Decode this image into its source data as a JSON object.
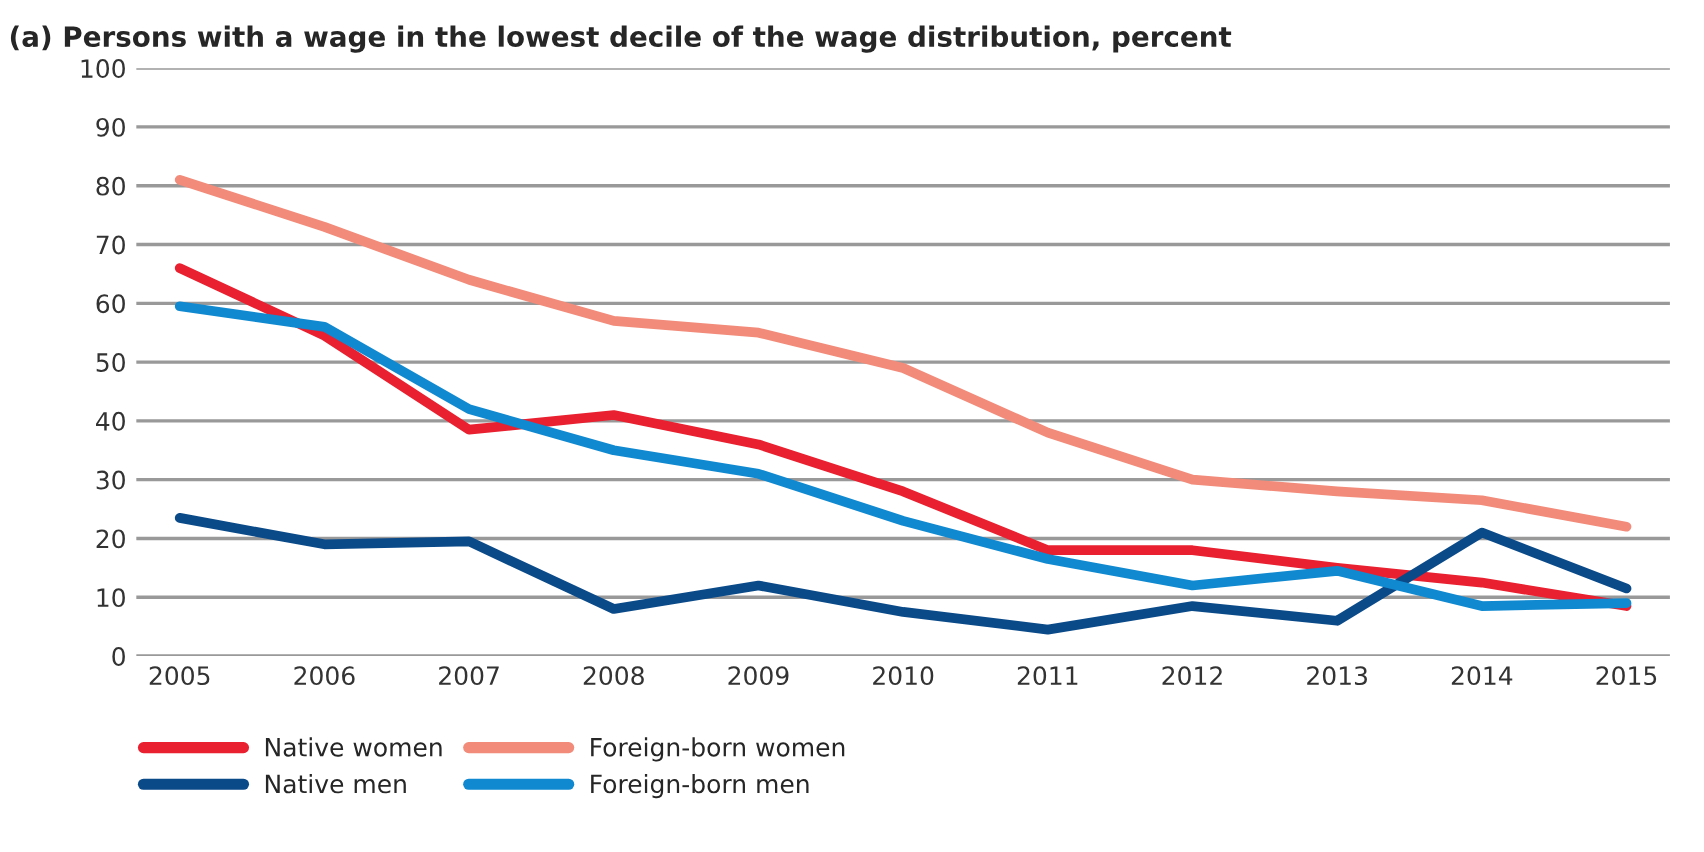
{
  "chart_data": {
    "type": "line",
    "title": "(a) Persons with a wage in the lowest decile of the wage distribution, percent",
    "categories": [
      "2005",
      "2006",
      "2007",
      "2008",
      "2009",
      "2010",
      "2011",
      "2012",
      "2013",
      "2014",
      "2015"
    ],
    "series": [
      {
        "name": "Native women",
        "color": "#e8202f",
        "values": [
          66,
          54.5,
          38.5,
          41,
          36,
          28,
          18,
          18,
          15,
          12.5,
          8.5
        ]
      },
      {
        "name": "Foreign-born women",
        "color": "#f28b7a",
        "values": [
          81,
          73,
          64,
          57,
          55,
          49,
          38,
          30,
          28,
          26.5,
          22
        ]
      },
      {
        "name": "Native men",
        "color": "#0b4a89",
        "values": [
          23.5,
          19,
          19.5,
          8,
          12,
          7.5,
          4.5,
          8.5,
          6,
          21,
          11.5
        ]
      },
      {
        "name": "Foreign-born men",
        "color": "#1089d0",
        "values": [
          59.5,
          56,
          42,
          35,
          31,
          23,
          16.5,
          12,
          14.5,
          8.5,
          9
        ]
      }
    ],
    "ylim": [
      0,
      100
    ],
    "yticks": [
      0,
      10,
      20,
      30,
      40,
      50,
      60,
      70,
      80,
      90,
      100
    ],
    "grid": "y",
    "legend": "bottom",
    "marker": "none",
    "line_style": "solid"
  }
}
